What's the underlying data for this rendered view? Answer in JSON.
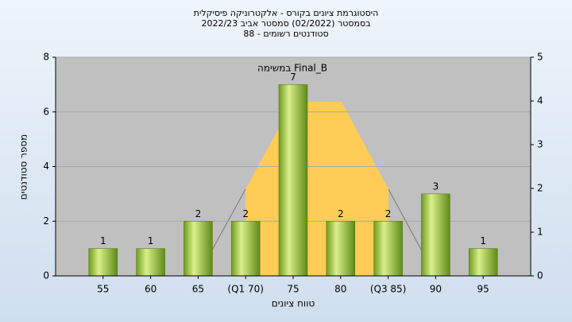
{
  "chart_data": {
    "type": "bar",
    "title": [
      "היסטוגרמת ציונים בקורס - אלקטרוניקה פיסיקלית",
      "בסמסטר (02/2022) סמסטר אביב 2022/23",
      "סטודנטים רשומים - 88"
    ],
    "annotation": "במשימה Final_B",
    "x_label": "טווח ציונים",
    "y_label": "מספר סטודנטים",
    "categories": [
      "55",
      "60",
      "65",
      "(Q1 70)",
      "75",
      "80",
      "(Q3 85)",
      "90",
      "95"
    ],
    "values": [
      1,
      1,
      2,
      2,
      7,
      2,
      2,
      3,
      1
    ],
    "color": "#9bc53d",
    "ylim": [
      0,
      8
    ],
    "yticks": [
      0,
      2,
      4,
      6,
      8
    ],
    "y2lim": [
      0,
      5
    ],
    "y2ticks": [
      0,
      1,
      2,
      3,
      4,
      5
    ],
    "grid": true
  }
}
